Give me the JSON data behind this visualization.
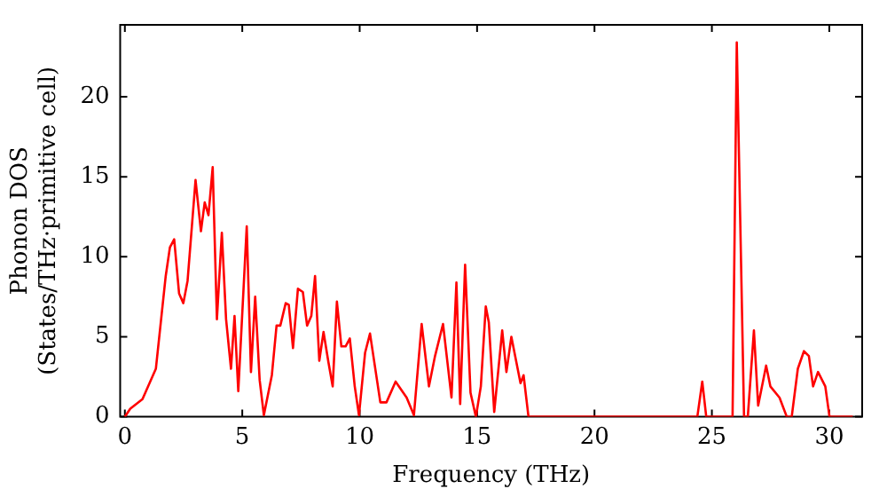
{
  "chart_data": {
    "type": "line",
    "xlabel": "Frequency (THz)",
    "ylabel": "Phonon DOS\n(States/THz·primitive cell)",
    "xlim": [
      -0.2,
      31.4
    ],
    "ylim": [
      0,
      24.5
    ],
    "xticks": [
      0,
      5,
      10,
      15,
      20,
      25,
      30
    ],
    "yticks": [
      0,
      5,
      10,
      15,
      20
    ],
    "grid": false,
    "legend": false,
    "marker": "none",
    "line_style": "solid",
    "x": [
      0,
      0.23,
      0.75,
      1.32,
      1.74,
      1.92,
      2.1,
      2.31,
      2.49,
      2.67,
      3.01,
      3.24,
      3.4,
      3.56,
      3.74,
      3.92,
      4.13,
      4.31,
      4.52,
      4.67,
      4.83,
      5.19,
      5.37,
      5.55,
      5.74,
      5.92,
      6.26,
      6.46,
      6.62,
      6.85,
      6.98,
      7.16,
      7.37,
      7.58,
      7.76,
      7.94,
      8.1,
      8.28,
      8.46,
      8.67,
      8.85,
      9.03,
      9.22,
      9.4,
      9.58,
      9.79,
      9.97,
      10.23,
      10.44,
      10.88,
      11.14,
      11.53,
      12.0,
      12.31,
      12.64,
      12.95,
      13.21,
      13.55,
      13.91,
      14.12,
      14.28,
      14.49,
      14.72,
      14.95,
      15.16,
      15.37,
      15.5,
      15.73,
      16.07,
      16.25,
      16.46,
      16.85,
      16.98,
      17.19,
      24.38,
      24.59,
      24.76,
      25.88,
      26.06,
      26.37,
      26.53,
      26.79,
      26.97,
      27.31,
      27.49,
      27.88,
      28.19,
      28.4,
      28.66,
      28.92,
      29.13,
      29.31,
      29.52,
      29.83,
      30.01,
      31.0
    ],
    "series": [
      {
        "color": "#ff0000",
        "values": [
          0,
          0.5,
          1.1,
          3.0,
          8.8,
          10.6,
          11.1,
          7.7,
          7.1,
          8.5,
          14.8,
          11.6,
          13.4,
          12.6,
          15.6,
          6.1,
          11.5,
          6.1,
          3.0,
          6.3,
          1.6,
          11.9,
          2.8,
          7.5,
          2.3,
          0.1,
          2.6,
          5.7,
          5.7,
          7.1,
          7.0,
          4.3,
          8.0,
          7.8,
          5.7,
          6.3,
          8.8,
          3.5,
          5.3,
          3.4,
          1.9,
          7.2,
          4.4,
          4.4,
          4.9,
          1.9,
          0.1,
          4.0,
          5.2,
          0.9,
          0.9,
          2.2,
          1.2,
          0.1,
          5.8,
          1.9,
          3.8,
          5.8,
          1.2,
          8.4,
          0.8,
          9.5,
          1.5,
          0,
          1.9,
          6.9,
          5.9,
          0.3,
          5.4,
          2.8,
          5.0,
          2.1,
          2.6,
          0,
          0,
          2.2,
          0,
          0,
          23.4,
          0,
          0,
          5.4,
          0.7,
          3.2,
          1.9,
          1.2,
          0,
          0,
          3.0,
          4.1,
          3.8,
          1.9,
          2.8,
          1.9,
          0,
          0
        ]
      }
    ]
  }
}
